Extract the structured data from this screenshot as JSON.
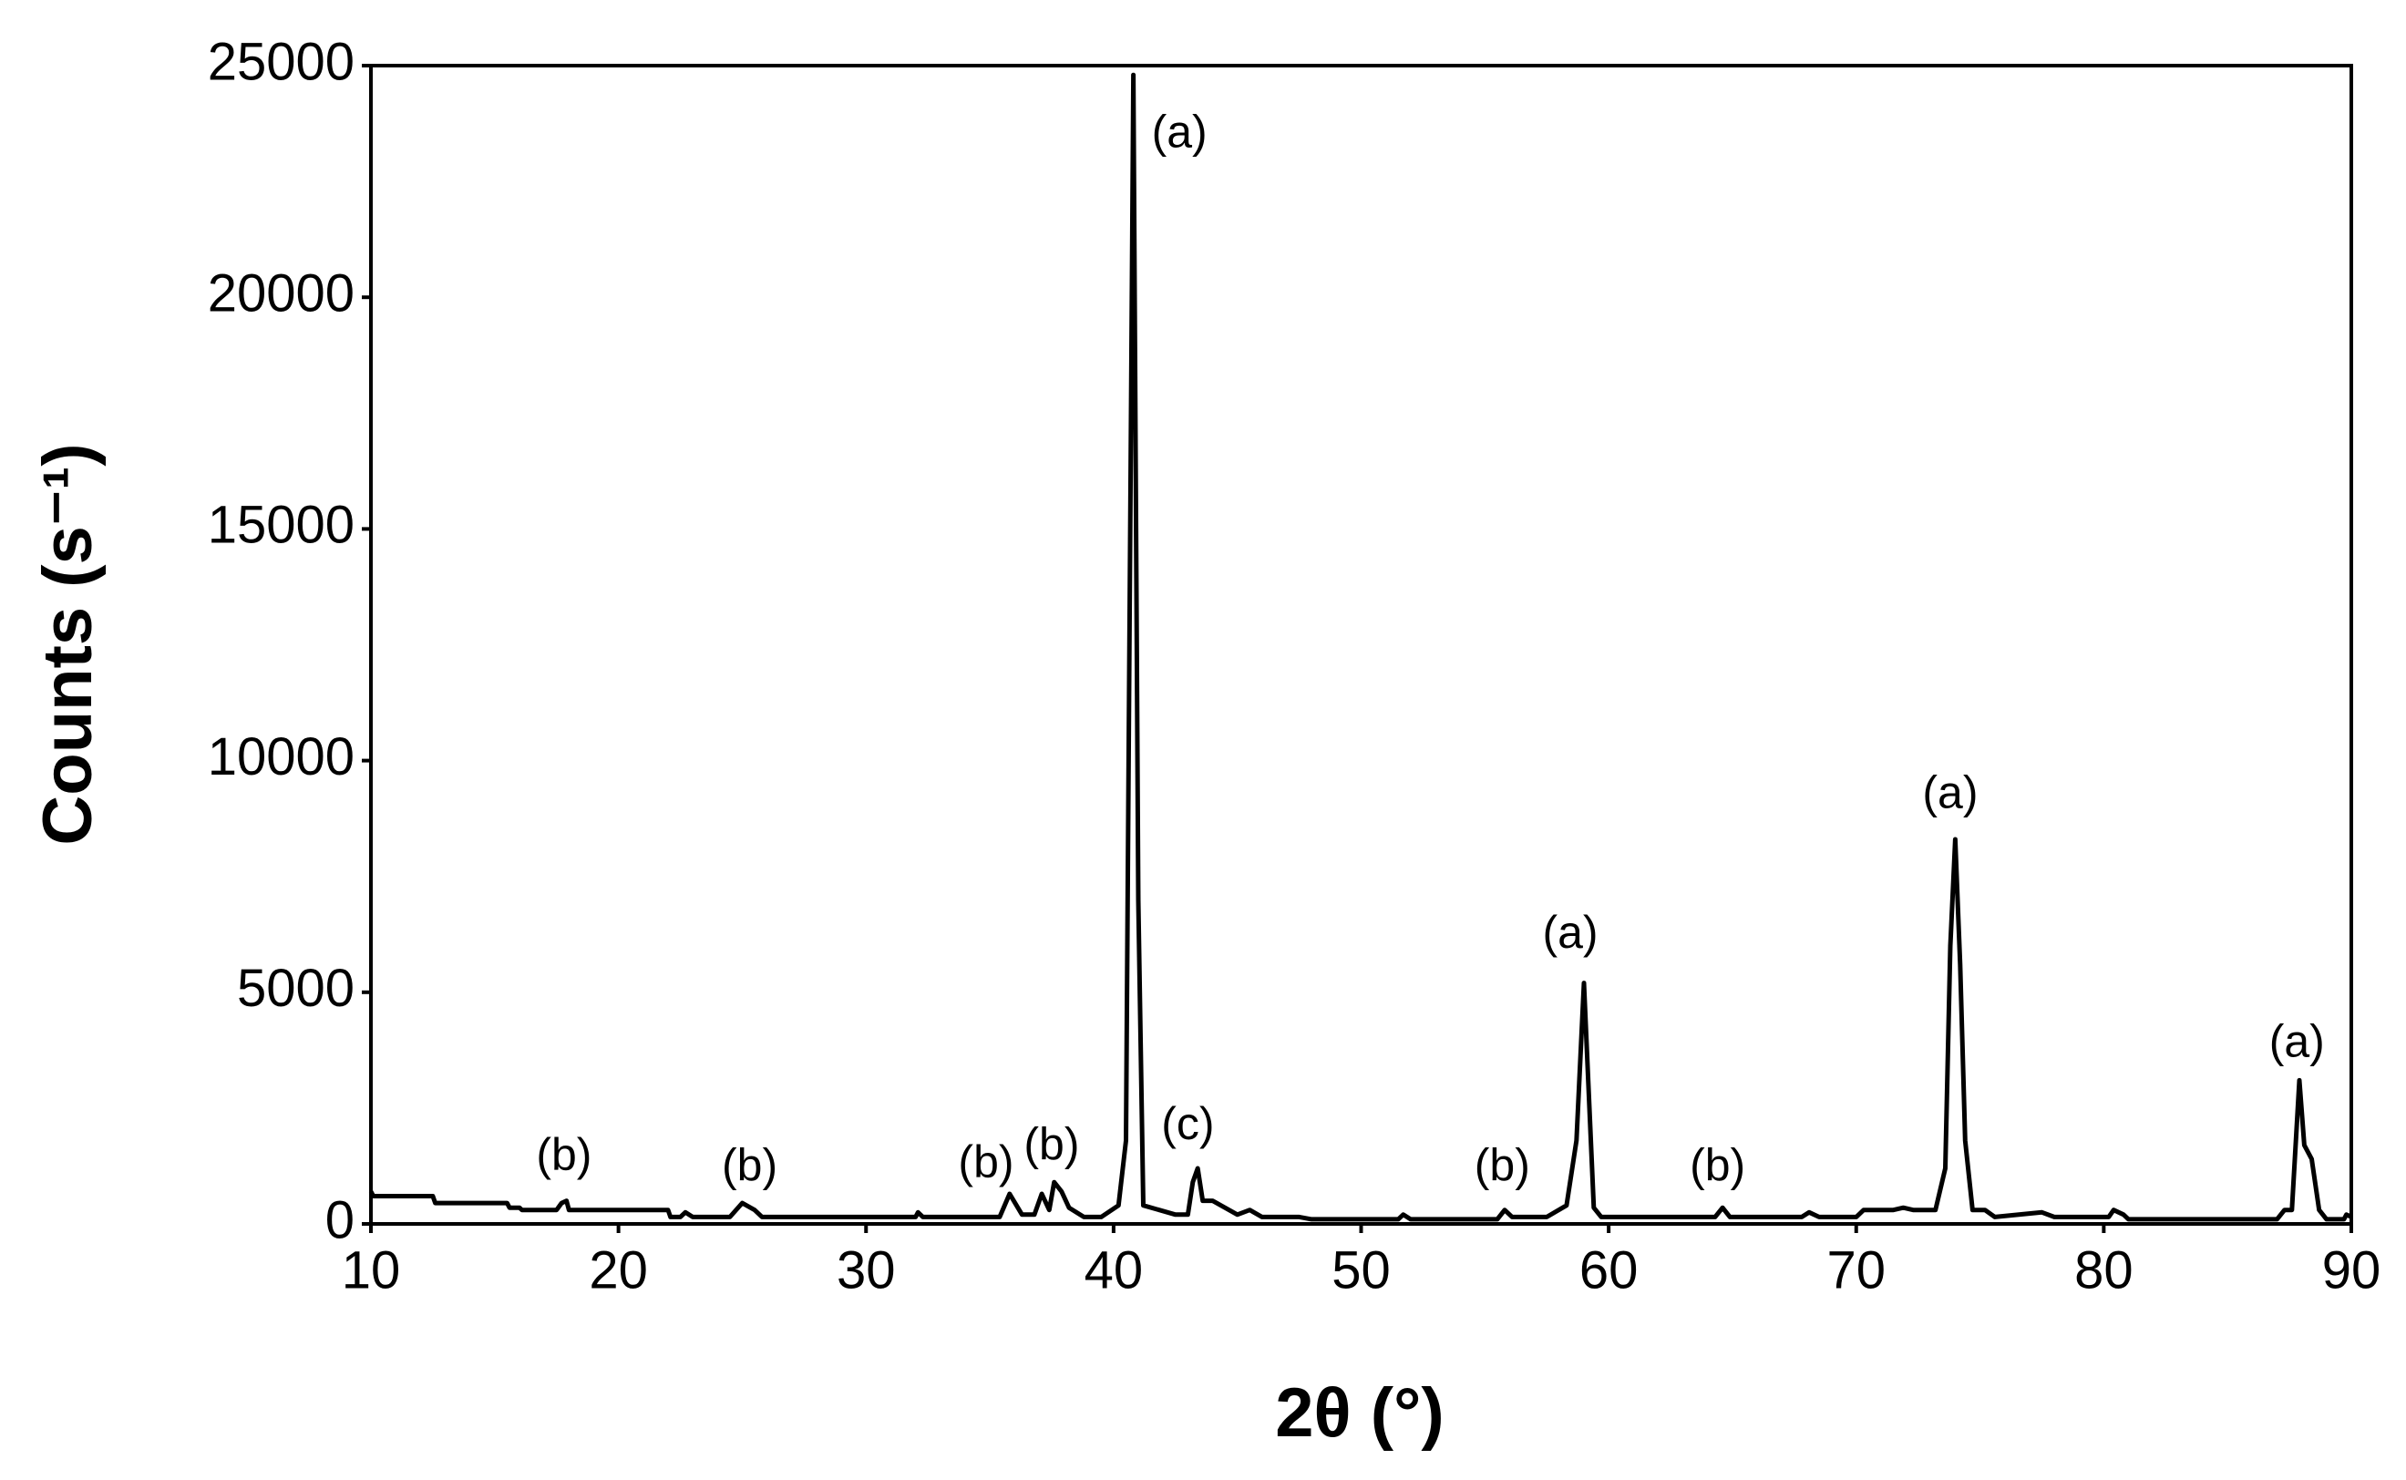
{
  "chart_data": {
    "type": "line",
    "xlabel": "2θ (°)",
    "ylabel": "Counts (s⁻¹)",
    "x": [
      10,
      10.1,
      12.5,
      12.6,
      15.5,
      15.6,
      16,
      16.1,
      17.5,
      17.7,
      17.9,
      18,
      22,
      22.1,
      22.5,
      22.7,
      23,
      24.5,
      25,
      25.5,
      25.8,
      32,
      32.1,
      32.3,
      35.4,
      35.8,
      36.3,
      36.8,
      37.1,
      37.4,
      37.6,
      37.9,
      38.2,
      38.8,
      39.5,
      40.2,
      40.5,
      40.8,
      41.0,
      41.2,
      42.5,
      43,
      43.2,
      43.4,
      43.6,
      44,
      44.5,
      45,
      45.5,
      46,
      47.5,
      48,
      51.5,
      51.7,
      52,
      55.5,
      55.8,
      56.1,
      57.5,
      58.3,
      58.7,
      59,
      59.4,
      59.7,
      64.3,
      64.6,
      64.9,
      67.8,
      68.1,
      68.5,
      70,
      70.3,
      71.5,
      71.9,
      72.3,
      73.2,
      73.6,
      73.8,
      74.0,
      74.2,
      74.4,
      74.7,
      75.2,
      75.6,
      77.5,
      78,
      80.2,
      80.4,
      80.8,
      81,
      87,
      87.3,
      87.6,
      87.9,
      88.1,
      88.4,
      88.7,
      89,
      89.7,
      89.8,
      90
    ],
    "series": [
      {
        "color": "#000000",
        "values": [
          700,
          600,
          600,
          450,
          450,
          350,
          350,
          300,
          300,
          450,
          500,
          300,
          300,
          150,
          150,
          250,
          150,
          150,
          450,
          300,
          150,
          150,
          250,
          150,
          150,
          650,
          200,
          200,
          650,
          300,
          900,
          700,
          350,
          150,
          150,
          400,
          1800,
          24800,
          7000,
          400,
          200,
          200,
          900,
          1200,
          500,
          500,
          350,
          200,
          300,
          150,
          150,
          100,
          100,
          200,
          100,
          100,
          300,
          150,
          150,
          400,
          1800,
          5200,
          350,
          150,
          150,
          350,
          150,
          150,
          250,
          150,
          150,
          300,
          300,
          350,
          300,
          300,
          1200,
          6000,
          8300,
          5600,
          1800,
          300,
          300,
          150,
          250,
          150,
          150,
          300,
          200,
          100,
          100,
          300,
          300,
          3100,
          1700,
          1400,
          300,
          100,
          100,
          200,
          150
        ]
      }
    ],
    "xlim": [
      10,
      90
    ],
    "xticks": [
      10,
      20,
      30,
      40,
      50,
      60,
      70,
      80,
      90
    ],
    "ylim": [
      0,
      25000
    ],
    "yticks": [
      0,
      5000,
      10000,
      15000,
      20000,
      25000
    ],
    "grid": false,
    "annotations": [
      {
        "text": "(b)",
        "x": 17.8,
        "y": 1420
      },
      {
        "text": "(b)",
        "x": 25.3,
        "y": 1190
      },
      {
        "text": "(b)",
        "x": 34.85,
        "y": 1260
      },
      {
        "text": "(b)",
        "x": 37.5,
        "y": 1650
      },
      {
        "text": "(a)",
        "x": 42.66,
        "y": 23500
      },
      {
        "text": "(c)",
        "x": 43.0,
        "y": 2090
      },
      {
        "text": "(b)",
        "x": 55.7,
        "y": 1190
      },
      {
        "text": "(a)",
        "x": 58.45,
        "y": 6220
      },
      {
        "text": "(b)",
        "x": 64.4,
        "y": 1190
      },
      {
        "text": "(a)",
        "x": 73.8,
        "y": 9240
      },
      {
        "text": "(a)",
        "x": 87.8,
        "y": 3870
      }
    ]
  }
}
